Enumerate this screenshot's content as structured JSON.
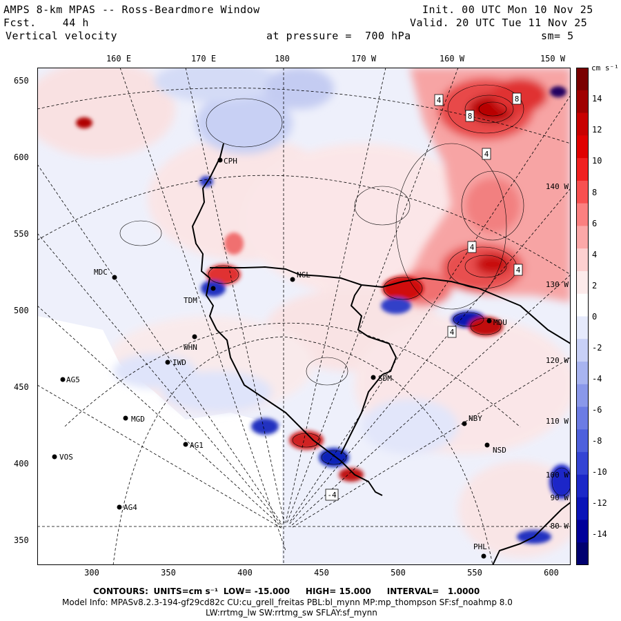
{
  "header": {
    "title": "AMPS 8-km MPAS -- Ross-Beardmore Window",
    "forecast": "Fcst.    44 h",
    "variable": "Vertical velocity",
    "init": "Init. 00 UTC Mon 10 Nov 25",
    "valid": "Valid. 20 UTC Tue 11 Nov 25",
    "pressure": "at pressure =  700 hPa",
    "smoothing": "sm= 5"
  },
  "map": {
    "top_lon_labels": [
      "160 E",
      "170 E",
      "180",
      "170 W",
      "160 W",
      "150 W"
    ],
    "y_ticks": [
      "650",
      "600",
      "550",
      "500",
      "450",
      "400",
      "350"
    ],
    "x_ticks": [
      "300",
      "350",
      "400",
      "450",
      "500",
      "550",
      "600"
    ],
    "stations": [
      "CPH",
      "MDC",
      "NGL",
      "TDM",
      "MDU",
      "WHN",
      "IWD",
      "AG5",
      "SDM",
      "MGD",
      "NBY",
      "AG1",
      "NSD",
      "VOS",
      "AG4",
      "PHL"
    ],
    "contour_labels": [
      "4",
      "8",
      "8",
      "4",
      "4",
      "4",
      "4",
      "-4"
    ],
    "edge_labels": [
      "140 W",
      "130 W",
      "120 W",
      "110 W",
      "100 W",
      "90 W",
      "80 W"
    ]
  },
  "colorbar": {
    "units": "cm s⁻¹",
    "tick_labels": [
      "14",
      "12",
      "10",
      "8",
      "6",
      "4",
      "2",
      "0",
      "-2",
      "-4",
      "-6",
      "-8",
      "-10",
      "-12",
      "-14"
    ],
    "colors": [
      "#7a0000",
      "#a00000",
      "#c80000",
      "#e00000",
      "#f02020",
      "#f85050",
      "#fb8080",
      "#fca8a8",
      "#fdd0d0",
      "#fdebeb",
      "#ffffff",
      "#e6eafc",
      "#c8d0f6",
      "#a8b4f0",
      "#8a98ea",
      "#6c7ce4",
      "#4e60dc",
      "#3444d4",
      "#1c28c8",
      "#0a14b8",
      "#00009a",
      "#000070"
    ]
  },
  "footer": {
    "contours_label": "CONTOURS:",
    "units_label": "UNITS=cm s⁻¹",
    "low": "LOW= -15.000",
    "high": "HIGH= 15.000",
    "interval": "INTERVAL=   1.0000",
    "model_info": "Model Info: MPASv8.2.3-194-gf29cd82c CU:cu_grell_freitas PBL:bl_mynn MP:mp_thompson SF:sf_noahmp 8.0",
    "physics": "LW:rrtmg_lw SW:rrtmg_sw SFLAY:sf_mynn"
  }
}
